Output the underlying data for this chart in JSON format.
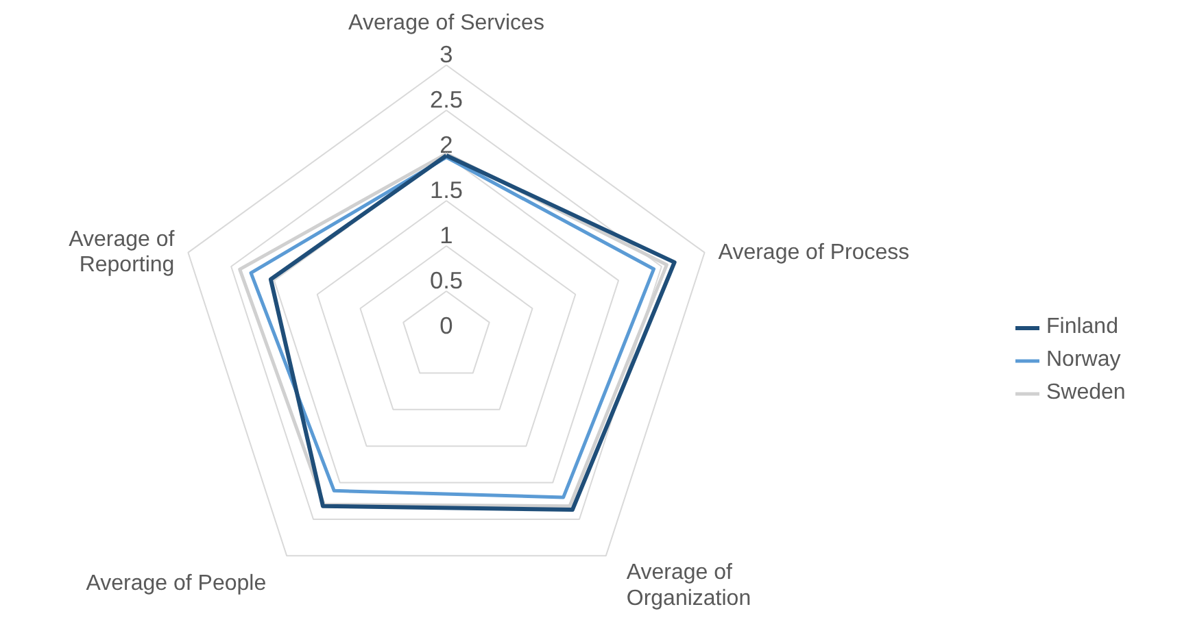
{
  "chart_data": {
    "type": "radar",
    "categories": [
      "Average of Services",
      "Average of Process",
      "Average of Organization",
      "Average of People",
      "Average of Reporting"
    ],
    "series": [
      {
        "name": "Finland",
        "color": "#1f4e79",
        "values": [
          2.0,
          2.65,
          2.37,
          2.32,
          2.04
        ]
      },
      {
        "name": "Norway",
        "color": "#5b9bd5",
        "values": [
          1.98,
          2.41,
          2.2,
          2.11,
          2.27
        ]
      },
      {
        "name": "Sweden",
        "color": "#d0d0d0",
        "values": [
          2.02,
          2.56,
          2.32,
          2.3,
          2.4
        ]
      }
    ],
    "ylim": [
      0,
      3
    ],
    "yticks": [
      0,
      0.5,
      1,
      1.5,
      2,
      2.5,
      3
    ],
    "grid": true,
    "legend": "right",
    "marker": "none",
    "line_style": "solid"
  }
}
